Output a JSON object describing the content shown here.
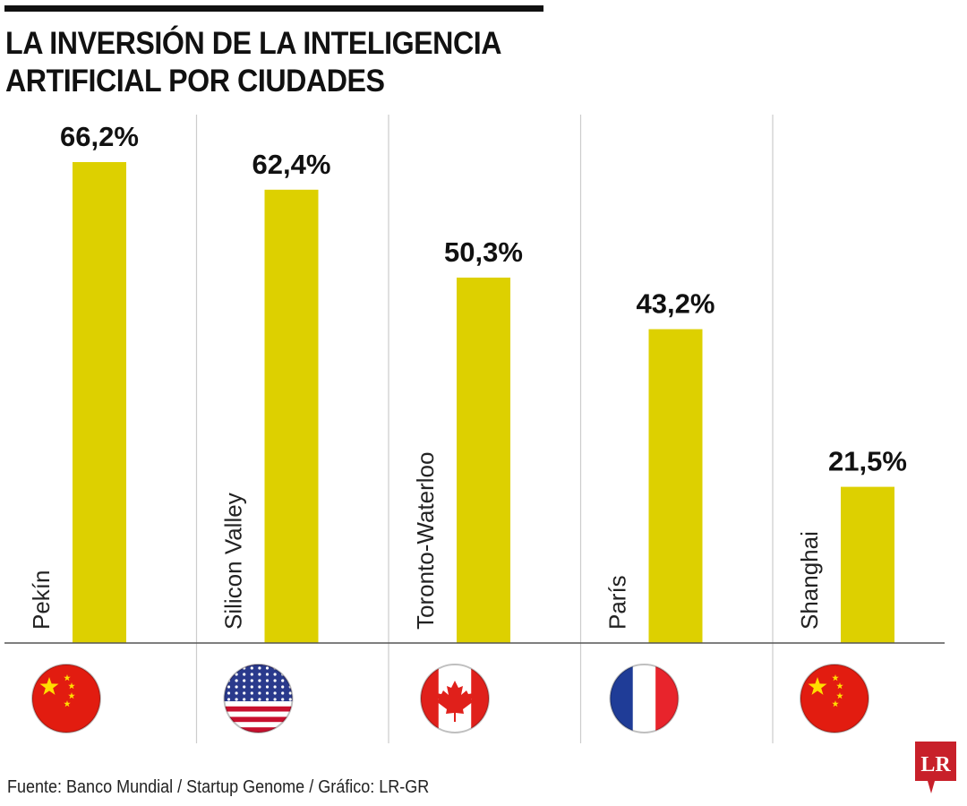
{
  "title_lines": [
    "LA INVERSIÓN DE LA INTELIGENCIA",
    "ARTIFICIAL POR CIUDADES"
  ],
  "source": "Fuente: Banco Mundial / Startup Genome / Gráfico: LR-GR",
  "logo_text": "LR",
  "colors": {
    "bar": "#ddd000",
    "logo": "#c8202a"
  },
  "chart_data": {
    "type": "bar",
    "categories": [
      "Pekín",
      "Silicon Valley",
      "Toronto-Waterloo",
      "París",
      "Shanghai"
    ],
    "values": [
      66.2,
      62.4,
      50.3,
      43.2,
      21.5
    ],
    "value_labels": [
      "66,2%",
      "62,4%",
      "50,3%",
      "43,2%",
      "21,5%"
    ],
    "flags": [
      "china",
      "usa",
      "canada",
      "france",
      "china"
    ],
    "unit": "%",
    "ylim": [
      0,
      66.2
    ],
    "grid": false
  }
}
